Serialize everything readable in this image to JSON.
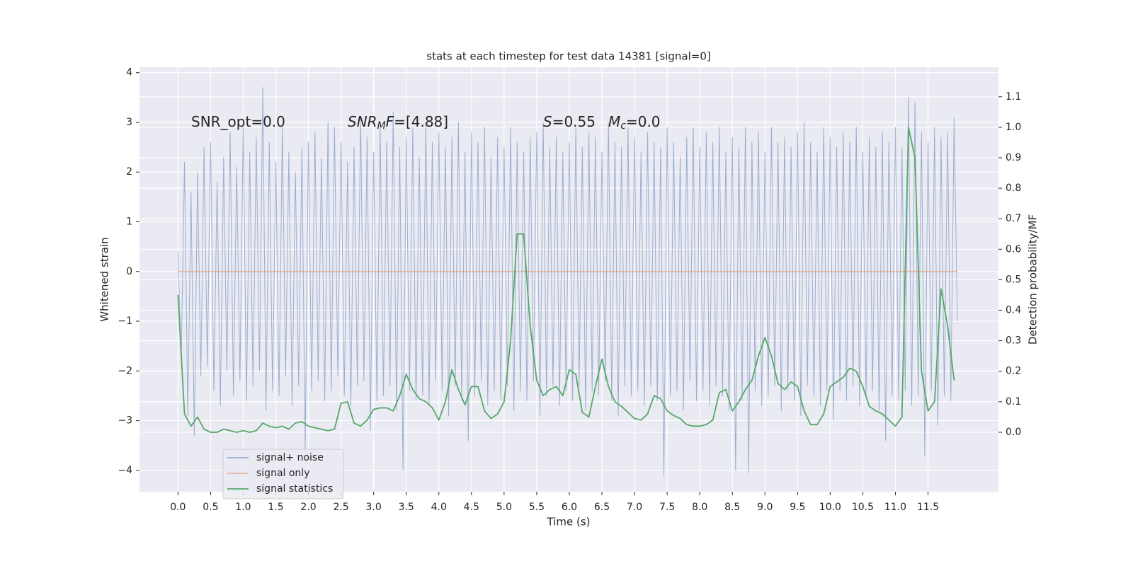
{
  "chart_data": {
    "type": "line",
    "title": "stats at each timestep for test data 14381 [signal=0]",
    "x_label": "Time (s)",
    "y_label": "Whitened strain",
    "y2_label": "Detection probability/MF",
    "xlim": [
      -0.59,
      12.58
    ],
    "ylim": [
      -4.43,
      4.11
    ],
    "y2lim": [
      -0.195,
      1.197
    ],
    "xticks": [
      {
        "value": 0,
        "label": "0.0"
      },
      0.5,
      {
        "value": 1,
        "label": "1.0"
      },
      1.5,
      {
        "value": 2,
        "label": "2.0"
      },
      2.5,
      {
        "value": 3,
        "label": "3.0"
      },
      3.5,
      {
        "value": 4,
        "label": "4.0"
      },
      4.5,
      {
        "value": 5,
        "label": "5.0"
      },
      5.5,
      {
        "value": 6,
        "label": "6.0"
      },
      6.5,
      {
        "value": 7,
        "label": "7.0"
      },
      7.5,
      {
        "value": 8,
        "label": "8.0"
      },
      8.5,
      {
        "value": 9,
        "label": "9.0"
      },
      9.5,
      {
        "value": 10,
        "label": "10.0"
      },
      10.5,
      {
        "value": 11,
        "label": "11.0"
      },
      11.5
    ],
    "yticks": [
      {
        "value": -4,
        "label": "−4"
      },
      {
        "value": -3,
        "label": "−3"
      },
      {
        "value": -2,
        "label": "−2"
      },
      {
        "value": -1,
        "label": "−1"
      },
      0,
      1,
      2,
      3,
      4
    ],
    "y2ticks": [
      {
        "value": 0,
        "label": "0.0"
      },
      0.1,
      0.2,
      0.3,
      0.4,
      0.5,
      0.6,
      0.7,
      0.8,
      0.9,
      {
        "value": 1,
        "label": "1.0"
      },
      1.1
    ],
    "grid": true,
    "legend": "lower left",
    "annotations": [
      {
        "parts": [
          {
            "text": "SNR_opt=0.0"
          }
        ]
      },
      {
        "parts": [
          {
            "text": "SNR",
            "style": "italic"
          },
          {
            "text": "M",
            "style": "sub"
          },
          {
            "text": "F",
            "style": "italic"
          },
          {
            "text": "=[4.88]"
          }
        ]
      },
      {
        "parts": [
          {
            "text": "S",
            "style": "italic"
          },
          {
            "text": "=0.55"
          }
        ]
      },
      {
        "parts": [
          {
            "text": "M",
            "style": "italic"
          },
          {
            "text": "c",
            "style": "sub"
          },
          {
            "text": "=0.0"
          }
        ]
      }
    ],
    "series": [
      {
        "name": "signal+ noise",
        "color": "#4c72b0",
        "alpha": 0.5,
        "x": [
          0,
          0.05,
          0.1,
          0.15,
          0.2,
          0.25,
          0.3,
          0.35,
          0.4,
          0.45,
          0.5,
          0.55,
          0.6,
          0.65,
          0.7,
          0.75,
          0.8,
          0.85,
          0.9,
          0.95,
          1,
          1.05,
          1.1,
          1.15,
          1.2,
          1.25,
          1.3,
          1.35,
          1.4,
          1.45,
          1.5,
          1.55,
          1.6,
          1.65,
          1.7,
          1.75,
          1.8,
          1.85,
          1.9,
          1.95,
          2,
          2.05,
          2.1,
          2.15,
          2.2,
          2.25,
          2.3,
          2.35,
          2.4,
          2.45,
          2.5,
          2.55,
          2.6,
          2.65,
          2.7,
          2.75,
          2.8,
          2.85,
          2.9,
          2.95,
          3,
          3.05,
          3.1,
          3.15,
          3.2,
          3.25,
          3.3,
          3.35,
          3.4,
          3.45,
          3.5,
          3.55,
          3.6,
          3.65,
          3.7,
          3.75,
          3.8,
          3.85,
          3.9,
          3.95,
          4,
          4.05,
          4.1,
          4.15,
          4.2,
          4.25,
          4.3,
          4.35,
          4.4,
          4.45,
          4.5,
          4.55,
          4.6,
          4.65,
          4.7,
          4.75,
          4.8,
          4.85,
          4.9,
          4.95,
          5,
          5.05,
          5.1,
          5.15,
          5.2,
          5.25,
          5.3,
          5.35,
          5.4,
          5.45,
          5.5,
          5.55,
          5.6,
          5.65,
          5.7,
          5.75,
          5.8,
          5.85,
          5.9,
          5.95,
          6,
          6.05,
          6.1,
          6.15,
          6.2,
          6.25,
          6.3,
          6.35,
          6.4,
          6.45,
          6.5,
          6.55,
          6.6,
          6.65,
          6.7,
          6.75,
          6.8,
          6.85,
          6.9,
          6.95,
          7,
          7.05,
          7.1,
          7.15,
          7.2,
          7.25,
          7.3,
          7.35,
          7.4,
          7.45,
          7.5,
          7.55,
          7.6,
          7.65,
          7.7,
          7.75,
          7.8,
          7.85,
          7.9,
          7.95,
          8,
          8.05,
          8.1,
          8.15,
          8.2,
          8.25,
          8.3,
          8.35,
          8.4,
          8.45,
          8.5,
          8.55,
          8.6,
          8.65,
          8.7,
          8.75,
          8.8,
          8.85,
          8.9,
          8.95,
          9,
          9.05,
          9.1,
          9.15,
          9.2,
          9.25,
          9.3,
          9.35,
          9.4,
          9.45,
          9.5,
          9.55,
          9.6,
          9.65,
          9.7,
          9.75,
          9.8,
          9.85,
          9.9,
          9.95,
          10,
          10.05,
          10.1,
          10.15,
          10.2,
          10.25,
          10.3,
          10.35,
          10.4,
          10.45,
          10.5,
          10.55,
          10.6,
          10.65,
          10.7,
          10.75,
          10.8,
          10.85,
          10.9,
          10.95,
          11,
          11.05,
          11.1,
          11.15,
          11.2,
          11.25,
          11.3,
          11.35,
          11.4,
          11.45,
          11.5,
          11.55,
          11.6,
          11.65,
          11.7,
          11.75,
          11.8,
          11.85,
          11.9,
          11.95
        ],
        "values": [
          0.4,
          -1.8,
          2.2,
          -2.9,
          1.6,
          -3.3,
          2.0,
          -2.1,
          2.5,
          -1.9,
          2.6,
          -2.4,
          1.8,
          -2.7,
          2.3,
          -2.0,
          2.8,
          -2.5,
          2.1,
          -2.2,
          2.9,
          -2.6,
          2.4,
          -2.3,
          2.7,
          -2.0,
          3.7,
          -2.8,
          2.6,
          -2.4,
          2.2,
          -2.5,
          2.9,
          -2.1,
          2.4,
          -2.7,
          2.0,
          -2.3,
          2.5,
          -3.6,
          2.6,
          -2.4,
          2.8,
          -2.2,
          2.3,
          -2.6,
          3.0,
          -2.4,
          2.9,
          -2.1,
          2.6,
          -2.5,
          2.2,
          -2.7,
          2.5,
          -2.3,
          3.1,
          -2.2,
          2.7,
          -3.2,
          2.4,
          -2.6,
          2.9,
          -2.5,
          2.6,
          -2.3,
          3.2,
          -2.8,
          2.5,
          -4.0,
          2.7,
          -2.4,
          2.9,
          -2.6,
          2.3,
          -2.5,
          3.0,
          -2.7,
          2.6,
          -2.2,
          2.8,
          -2.4,
          2.5,
          -2.9,
          2.7,
          -2.3,
          3.0,
          -2.6,
          2.4,
          -3.4,
          2.8,
          -2.5,
          2.6,
          -2.2,
          2.9,
          -2.7,
          2.3,
          -2.4,
          2.7,
          -2.6,
          2.5,
          -2.3,
          2.9,
          -2.8,
          2.6,
          -2.4,
          2.4,
          -2.6,
          2.7,
          -2.2,
          2.8,
          -2.9,
          3.0,
          -2.5,
          2.5,
          -2.3,
          2.7,
          -2.7,
          2.4,
          -2.4,
          2.6,
          -2.6,
          2.9,
          -2.3,
          2.5,
          -2.8,
          2.8,
          -2.4,
          2.7,
          -2.5,
          2.4,
          -2.2,
          3.0,
          -2.6,
          2.6,
          -2.9,
          2.5,
          -2.3,
          2.9,
          -2.5,
          2.7,
          -2.4,
          2.4,
          -2.7,
          2.8,
          -2.3,
          2.6,
          -2.6,
          2.5,
          -4.1,
          2.9,
          -2.5,
          2.6,
          -2.4,
          2.3,
          -2.8,
          2.7,
          -2.2,
          2.9,
          -2.6,
          2.5,
          -2.4,
          2.8,
          -2.7,
          2.6,
          -2.3,
          2.9,
          -2.5,
          2.4,
          -2.8,
          2.7,
          -4.0,
          2.5,
          -2.6,
          2.9,
          -4.05,
          2.6,
          -2.4,
          2.8,
          -2.7,
          2.4,
          -2.5,
          2.9,
          -2.3,
          2.6,
          -2.8,
          2.7,
          -2.4,
          2.5,
          -2.6,
          2.8,
          -2.9,
          3.0,
          -2.3,
          2.6,
          -2.5,
          2.4,
          -2.7,
          2.9,
          -2.4,
          2.7,
          -3.0,
          2.5,
          -2.4,
          2.8,
          -2.6,
          2.6,
          -2.3,
          2.9,
          -2.7,
          2.4,
          -2.5,
          2.7,
          -2.4,
          2.5,
          -2.8,
          2.8,
          -3.4,
          2.6,
          -2.5,
          2.9,
          -2.6,
          2.5,
          -2.4,
          3.5,
          -2.7,
          3.4,
          -2.5,
          2.8,
          -3.7,
          2.6,
          -2.4,
          2.9,
          -3.1,
          2.7,
          -2.5,
          2.8,
          -2.6,
          3.1,
          -1.0
        ]
      },
      {
        "name": "signal only",
        "color": "#dd8452",
        "alpha": 0.5,
        "x": [
          0,
          11.95
        ],
        "values": [
          0,
          0
        ]
      },
      {
        "name": "signal statistics",
        "color": "#55a868",
        "alpha": 1,
        "axis": "y2",
        "x": [
          0,
          0.1,
          0.2,
          0.3,
          0.4,
          0.5,
          0.6,
          0.7,
          0.8,
          0.9,
          1,
          1.1,
          1.2,
          1.3,
          1.4,
          1.5,
          1.6,
          1.7,
          1.8,
          1.9,
          2,
          2.1,
          2.2,
          2.3,
          2.4,
          2.5,
          2.6,
          2.7,
          2.8,
          2.9,
          3,
          3.1,
          3.2,
          3.3,
          3.4,
          3.5,
          3.6,
          3.7,
          3.8,
          3.9,
          4,
          4.1,
          4.2,
          4.3,
          4.4,
          4.5,
          4.6,
          4.7,
          4.8,
          4.9,
          5,
          5.1,
          5.2,
          5.3,
          5.4,
          5.5,
          5.6,
          5.7,
          5.8,
          5.9,
          6,
          6.1,
          6.2,
          6.3,
          6.4,
          6.5,
          6.6,
          6.7,
          6.8,
          6.9,
          7,
          7.1,
          7.2,
          7.3,
          7.4,
          7.5,
          7.6,
          7.7,
          7.8,
          7.9,
          8,
          8.1,
          8.2,
          8.3,
          8.4,
          8.5,
          8.6,
          8.7,
          8.8,
          8.9,
          9,
          9.1,
          9.2,
          9.3,
          9.4,
          9.5,
          9.6,
          9.7,
          9.8,
          9.9,
          10,
          10.1,
          10.2,
          10.3,
          10.4,
          10.5,
          10.6,
          10.7,
          10.8,
          10.9,
          11,
          11.1,
          11.2,
          11.3,
          11.4,
          11.5,
          11.6,
          11.7,
          11.8,
          11.9
        ],
        "values": [
          0.45,
          0.06,
          0.02,
          0.05,
          0.01,
          0.0,
          0.0,
          0.01,
          0.005,
          0.0,
          0.005,
          0.0,
          0.005,
          0.03,
          0.02,
          0.015,
          0.02,
          0.01,
          0.03,
          0.035,
          0.02,
          0.015,
          0.01,
          0.005,
          0.01,
          0.095,
          0.1,
          0.03,
          0.02,
          0.04,
          0.075,
          0.08,
          0.08,
          0.07,
          0.12,
          0.19,
          0.14,
          0.11,
          0.1,
          0.08,
          0.04,
          0.1,
          0.205,
          0.14,
          0.09,
          0.15,
          0.15,
          0.07,
          0.045,
          0.06,
          0.1,
          0.3,
          0.65,
          0.65,
          0.35,
          0.17,
          0.12,
          0.14,
          0.15,
          0.12,
          0.205,
          0.19,
          0.065,
          0.05,
          0.15,
          0.24,
          0.15,
          0.1,
          0.085,
          0.065,
          0.045,
          0.04,
          0.06,
          0.12,
          0.11,
          0.07,
          0.055,
          0.045,
          0.025,
          0.02,
          0.02,
          0.025,
          0.04,
          0.13,
          0.14,
          0.07,
          0.1,
          0.14,
          0.17,
          0.25,
          0.31,
          0.25,
          0.16,
          0.14,
          0.165,
          0.15,
          0.07,
          0.025,
          0.025,
          0.06,
          0.15,
          0.165,
          0.18,
          0.21,
          0.2,
          0.15,
          0.085,
          0.07,
          0.06,
          0.04,
          0.02,
          0.05,
          1.0,
          0.9,
          0.2,
          0.07,
          0.1,
          0.47,
          0.35,
          0.17
        ]
      }
    ]
  }
}
